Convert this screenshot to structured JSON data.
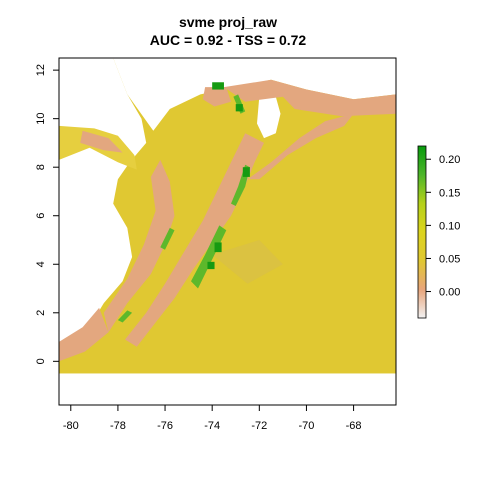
{
  "title_line1": "svme proj_raw",
  "title_line2": "AUC = 0.92 - TSS = 0.72",
  "chart_data": {
    "type": "heatmap",
    "xlim": [
      -80.5,
      -66.2
    ],
    "ylim": [
      -1.8,
      12.5
    ],
    "x_ticks": [
      -80,
      -78,
      -76,
      -74,
      -72,
      -70,
      -68
    ],
    "y_ticks": [
      0,
      2,
      4,
      6,
      8,
      10,
      12
    ],
    "grid": false,
    "legend": {
      "position": "right",
      "range": [
        -0.04,
        0.22
      ],
      "ticks": [
        0.0,
        0.05,
        0.1,
        0.15,
        0.2
      ],
      "tick_labels": [
        "0.00",
        "0.05",
        "0.10",
        "0.15",
        "0.20"
      ],
      "colors": [
        "#f2f2f2",
        "#e8a57b",
        "#e0c832",
        "#dcd41e",
        "#b5d11a",
        "#4db52a",
        "#089b0e"
      ]
    },
    "raster_extent": {
      "xmin": -80.5,
      "xmax": -66.2,
      "ymin": -0.5,
      "ymax": 12.5
    },
    "value_ranges": {
      "low": 0.04,
      "mid": 0.08,
      "high": 0.1,
      "max": 0.21
    },
    "colors": {
      "background": "#ffffff",
      "land": "#e0c832",
      "land_light": "#e6cf3f",
      "lowland": "#d6bb4f",
      "mountain": "#e3a77f",
      "highland_green": "#5db82b",
      "peak_green": "#169a12",
      "ocean": "#ffffff"
    }
  }
}
